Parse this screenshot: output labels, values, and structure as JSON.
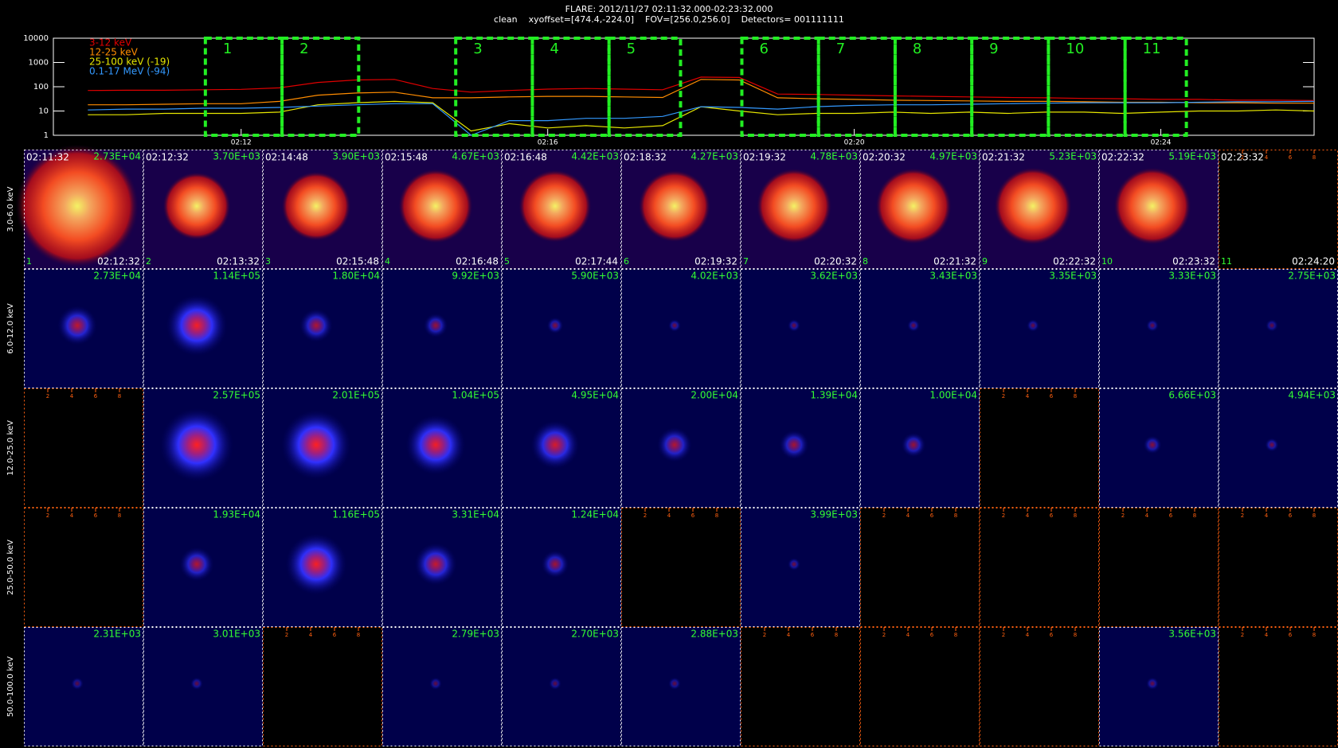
{
  "chart_data": {
    "type": "line",
    "title": "FLARE: 2012/11/27 02:11:32.000-02:23:32.000",
    "subtitle": "clean    xyoffset=[474.4,-224.0]    FOV=[256.0,256.0]    Detectors= 001111111",
    "log_y": true,
    "ylim": [
      1,
      10000
    ],
    "yticks": [
      1,
      10,
      100,
      1000,
      10000
    ],
    "xlim": [
      "02:09:33",
      "02:26:00"
    ],
    "xticks": [
      "02:12",
      "02:16",
      "02:20",
      "02:24"
    ],
    "legend": "top-left",
    "x": [
      "02:10:00",
      "02:10:30",
      "02:11:00",
      "02:11:30",
      "02:12:00",
      "02:12:30",
      "02:13:00",
      "02:13:30",
      "02:14:00",
      "02:14:30",
      "02:15:00",
      "02:15:30",
      "02:16:00",
      "02:16:30",
      "02:17:00",
      "02:17:30",
      "02:18:00",
      "02:18:30",
      "02:19:00",
      "02:19:30",
      "02:20:00",
      "02:20:30",
      "02:21:00",
      "02:21:30",
      "02:22:00",
      "02:22:30",
      "02:23:00",
      "02:23:30",
      "02:24:00",
      "02:24:30",
      "02:25:00",
      "02:25:30",
      "02:26:00"
    ],
    "series": [
      {
        "name": "3-12 keV",
        "color": "#e00000",
        "values": [
          70,
          72,
          72,
          75,
          78,
          90,
          150,
          190,
          200,
          85,
          60,
          70,
          80,
          85,
          80,
          75,
          250,
          240,
          50,
          48,
          45,
          42,
          40,
          38,
          36,
          35,
          33,
          32,
          30,
          30,
          28,
          28,
          27
        ]
      },
      {
        "name": "12-25 keV",
        "color": "#ff8c00",
        "values": [
          18,
          18,
          19,
          20,
          20,
          25,
          45,
          55,
          60,
          35,
          35,
          38,
          40,
          40,
          38,
          36,
          200,
          190,
          35,
          32,
          30,
          28,
          27,
          26,
          25,
          25,
          24,
          23,
          23,
          22,
          22,
          21,
          21
        ]
      },
      {
        "name": "25-100 keV (-19)",
        "color": "#e6e600",
        "values": [
          7,
          7,
          8,
          8,
          8,
          9,
          18,
          22,
          25,
          22,
          1.5,
          3,
          2,
          2.5,
          2,
          2.5,
          15,
          10,
          7,
          8,
          8,
          9,
          8,
          9,
          8,
          9,
          9,
          8,
          9,
          10,
          10,
          11,
          10
        ]
      },
      {
        "name": "0.1-17 MeV (-94)",
        "color": "#3399ff",
        "values": [
          11,
          12,
          12,
          13,
          13,
          14,
          16,
          18,
          20,
          20,
          1,
          4,
          4,
          5,
          5,
          6,
          15,
          14,
          12,
          15,
          17,
          18,
          18,
          19,
          20,
          21,
          22,
          22,
          22,
          23,
          24,
          24,
          25
        ]
      }
    ],
    "interval_color": "#22ee22",
    "panels": {
      "empty_panel_ticks": [
        2,
        4,
        6,
        8
      ],
      "columns": [
        {
          "number": 1,
          "start": "02:11:32",
          "end": "02:12:32"
        },
        {
          "number": 2,
          "start": "02:12:32",
          "end": "02:13:32"
        },
        {
          "number": 3,
          "start": "02:14:48",
          "end": "02:15:48"
        },
        {
          "number": 4,
          "start": "02:15:48",
          "end": "02:16:48"
        },
        {
          "number": 5,
          "start": "02:16:48",
          "end": "02:17:44"
        },
        {
          "number": 6,
          "start": "02:18:32",
          "end": "02:19:32"
        },
        {
          "number": 7,
          "start": "02:19:32",
          "end": "02:20:32"
        },
        {
          "number": 8,
          "start": "02:20:32",
          "end": "02:21:32"
        },
        {
          "number": 9,
          "start": "02:21:32",
          "end": "02:22:32"
        },
        {
          "number": 10,
          "start": "02:22:32",
          "end": "02:23:32"
        },
        {
          "number": 11,
          "start": "02:23:32",
          "end": "02:24:20"
        }
      ],
      "rows": [
        {
          "label": "3.0-6.0 keV",
          "style": "hot",
          "peaks": [
            27300,
            3700,
            3900,
            4670,
            4420,
            4270,
            4780,
            4970,
            5230,
            5190,
            null
          ],
          "value_labels": [
            "2.73E+04",
            "3.70E+03",
            "3.90E+03",
            "4.67E+03",
            "4.42E+03",
            "4.27E+03",
            "4.78E+03",
            "4.97E+03",
            "5.23E+03",
            "5.19E+03",
            null
          ]
        },
        {
          "label": "6.0-12.0 keV",
          "style": "blue",
          "peaks": [
            27300,
            114000,
            18000,
            9920,
            5900,
            4020,
            3620,
            3430,
            3350,
            3330,
            2750
          ],
          "value_labels": [
            "2.73E+04",
            "1.14E+05",
            "1.80E+04",
            "9.92E+03",
            "5.90E+03",
            "4.02E+03",
            "3.62E+03",
            "3.43E+03",
            "3.35E+03",
            "3.33E+03",
            "2.75E+03"
          ]
        },
        {
          "label": "12.0-25.0 keV",
          "style": "blue",
          "peaks": [
            null,
            257000,
            201000,
            104000,
            49500,
            20000,
            13900,
            10000,
            null,
            6660,
            4940
          ],
          "value_labels": [
            null,
            "2.57E+05",
            "2.01E+05",
            "1.04E+05",
            "4.95E+04",
            "2.00E+04",
            "1.39E+04",
            "1.00E+04",
            null,
            "6.66E+03",
            "4.94E+03"
          ]
        },
        {
          "label": "25.0-50.0 keV",
          "style": "blue",
          "peaks": [
            null,
            19300,
            116000,
            33100,
            12400,
            null,
            3990,
            null,
            null,
            null,
            null
          ],
          "value_labels": [
            null,
            "1.93E+04",
            "1.16E+05",
            "3.31E+04",
            "1.24E+04",
            null,
            "3.99E+03",
            null,
            null,
            null,
            null
          ]
        },
        {
          "label": "50.0-100.0 keV",
          "style": "blue",
          "peaks": [
            2310,
            3010,
            null,
            2790,
            2700,
            2880,
            null,
            null,
            null,
            3560,
            null
          ],
          "value_labels": [
            "2.31E+03",
            "3.01E+03",
            null,
            "2.79E+03",
            "2.70E+03",
            "2.88E+03",
            null,
            null,
            null,
            "3.56E+03",
            null
          ]
        }
      ]
    }
  }
}
